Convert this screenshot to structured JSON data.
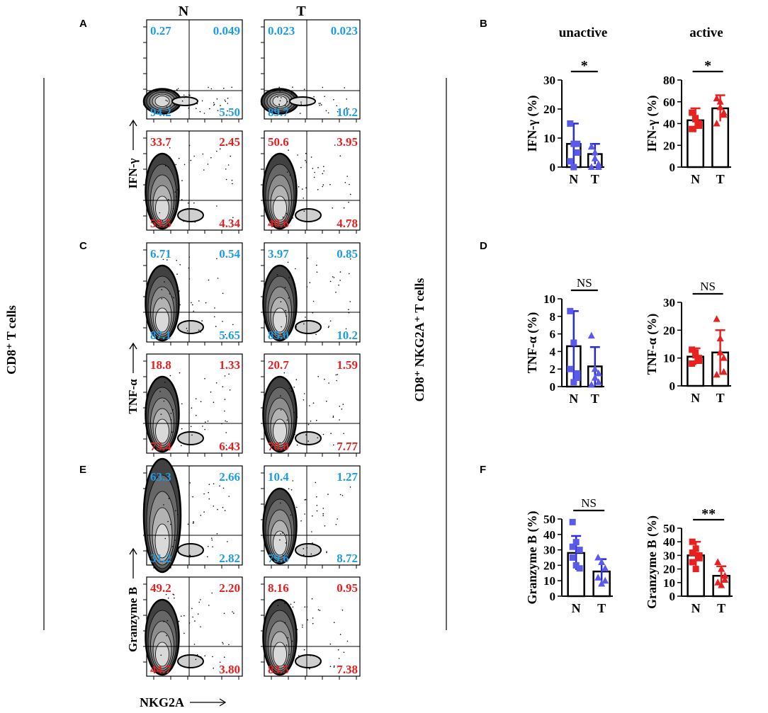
{
  "figure": {
    "panel_letters": [
      "A",
      "B",
      "C",
      "D",
      "E",
      "F"
    ],
    "column_headers": {
      "n": "N",
      "t": "T"
    },
    "row_label_left": "CD8⁺ T cells",
    "row_label_right": "CD8⁺ NKG2A⁺ T cells",
    "x_axis_flow": "NKG2A",
    "colors": {
      "blue_text": "#1e9be6",
      "red_text": "#e81e1e",
      "blue_series": "#2a2adc",
      "blue_marker": "#5a5ae8",
      "red_series": "#e82020"
    }
  },
  "flow": [
    {
      "id": "A-N-unactive",
      "panel": "A",
      "group": "N",
      "state": "unactive",
      "ylabel": "",
      "q": [
        "0.27",
        "0.049",
        "94.2",
        "5.50"
      ]
    },
    {
      "id": "A-T-unactive",
      "panel": "A",
      "group": "T",
      "state": "unactive",
      "ylabel": "",
      "q": [
        "0.023",
        "0.023",
        "89.7",
        "10.2"
      ]
    },
    {
      "id": "A-N-active",
      "panel": "A",
      "group": "N",
      "state": "active",
      "ylabel": "IFN-γ",
      "q": [
        "33.7",
        "2.45",
        "59.5",
        "4.34"
      ]
    },
    {
      "id": "A-T-active",
      "panel": "A",
      "group": "T",
      "state": "active",
      "ylabel": "",
      "q": [
        "50.6",
        "3.95",
        "40.6",
        "4.78"
      ]
    },
    {
      "id": "C-N-unactive",
      "panel": "C",
      "group": "N",
      "state": "unactive",
      "ylabel": "",
      "q": [
        "6.71",
        "0.54",
        "87.1",
        "5.65"
      ]
    },
    {
      "id": "C-T-unactive",
      "panel": "C",
      "group": "T",
      "state": "unactive",
      "ylabel": "",
      "q": [
        "3.97",
        "0.85",
        "85.0",
        "10.2"
      ]
    },
    {
      "id": "C-N-active",
      "panel": "C",
      "group": "N",
      "state": "active",
      "ylabel": "TNF-α",
      "q": [
        "18.8",
        "1.33",
        "73.4",
        "6.43"
      ]
    },
    {
      "id": "C-T-active",
      "panel": "C",
      "group": "T",
      "state": "active",
      "ylabel": "",
      "q": [
        "20.7",
        "1.59",
        "70.0",
        "7.77"
      ]
    },
    {
      "id": "E-N-unactive",
      "panel": "E",
      "group": "N",
      "state": "unactive",
      "ylabel": "",
      "q": [
        "63.3",
        "2.66",
        "31.2",
        "2.82"
      ]
    },
    {
      "id": "E-T-unactive",
      "panel": "E",
      "group": "T",
      "state": "unactive",
      "ylabel": "",
      "q": [
        "10.4",
        "1.27",
        "79.6",
        "8.72"
      ]
    },
    {
      "id": "E-N-active",
      "panel": "E",
      "group": "N",
      "state": "active",
      "ylabel": "Granzyme B",
      "q": [
        "49.2",
        "2.20",
        "44.7",
        "3.80"
      ]
    },
    {
      "id": "E-T-active",
      "panel": "E",
      "group": "T",
      "state": "active",
      "ylabel": "",
      "q": [
        "8.16",
        "0.95",
        "83.5",
        "7.38"
      ]
    }
  ],
  "chart_data": [
    {
      "type": "bar",
      "panel": "B",
      "title": "unactive",
      "ylabel": "IFN-γ (%)",
      "categories": [
        "N",
        "T"
      ],
      "ylim": [
        0,
        30
      ],
      "yticks": [
        "0",
        "10",
        "20",
        "30"
      ],
      "color": "#2a2adc",
      "series": [
        {
          "name": "N",
          "mean": 8,
          "sd": 7,
          "points": [
            15,
            8,
            5,
            2,
            0,
            8
          ]
        },
        {
          "name": "T",
          "mean": 4.5,
          "sd": 3.5,
          "points": [
            7,
            3,
            0,
            0,
            5,
            1
          ]
        }
      ],
      "significance": "*"
    },
    {
      "type": "bar",
      "panel": "B",
      "title": "active",
      "ylabel": "IFN-γ (%)",
      "categories": [
        "N",
        "T"
      ],
      "ylim": [
        0,
        80
      ],
      "yticks": [
        "0",
        "20",
        "40",
        "60",
        "80"
      ],
      "color": "#e82020",
      "series": [
        {
          "name": "N",
          "mean": 43,
          "sd": 11,
          "points": [
            50,
            44,
            38,
            35,
            45,
            40
          ]
        },
        {
          "name": "T",
          "mean": 54,
          "sd": 12,
          "points": [
            63,
            55,
            50,
            40,
            60,
            48
          ]
        }
      ],
      "significance": "*"
    },
    {
      "type": "bar",
      "panel": "D",
      "title": "",
      "ylabel": "TNF-α (%)",
      "categories": [
        "N",
        "T"
      ],
      "ylim": [
        0,
        10
      ],
      "yticks": [
        "0",
        "2",
        "4",
        "6",
        "8",
        "10"
      ],
      "color": "#2a2adc",
      "series": [
        {
          "name": "N",
          "mean": 4.6,
          "sd": 4,
          "points": [
            8.6,
            5,
            1.5,
            2,
            0.5,
            1
          ]
        },
        {
          "name": "T",
          "mean": 2.3,
          "sd": 2.2,
          "points": [
            5.8,
            2,
            0.5,
            0.2,
            1,
            1.5
          ]
        }
      ],
      "significance": "NS"
    },
    {
      "type": "bar",
      "panel": "D",
      "title": "",
      "ylabel": "TNF-α (%)",
      "categories": [
        "N",
        "T"
      ],
      "ylim": [
        0,
        30
      ],
      "yticks": [
        "0",
        "10",
        "20",
        "30"
      ],
      "color": "#e82020",
      "series": [
        {
          "name": "N",
          "mean": 10.5,
          "sd": 3,
          "points": [
            13,
            11,
            9,
            8,
            12,
            10
          ]
        },
        {
          "name": "T",
          "mean": 12,
          "sd": 8,
          "points": [
            24,
            17,
            10,
            4,
            12,
            5
          ]
        }
      ],
      "significance": "NS"
    },
    {
      "type": "bar",
      "panel": "F",
      "title": "",
      "ylabel": "Granzyme B (%)",
      "categories": [
        "N",
        "T"
      ],
      "ylim": [
        0,
        50
      ],
      "yticks": [
        "0",
        "10",
        "20",
        "30",
        "40",
        "50"
      ],
      "color": "#2a2adc",
      "series": [
        {
          "name": "N",
          "mean": 28,
          "sd": 11,
          "points": [
            48,
            35,
            30,
            25,
            20,
            18,
            32
          ]
        },
        {
          "name": "T",
          "mean": 16,
          "sd": 8,
          "points": [
            25,
            22,
            18,
            12,
            8,
            10
          ]
        }
      ],
      "significance": "NS"
    },
    {
      "type": "bar",
      "panel": "F",
      "title": "",
      "ylabel": "Granzyme B (%)",
      "categories": [
        "N",
        "T"
      ],
      "ylim": [
        0,
        50
      ],
      "yticks": [
        "0",
        "10",
        "20",
        "30",
        "40",
        "50"
      ],
      "color": "#e82020",
      "series": [
        {
          "name": "N",
          "mean": 30,
          "sd": 10,
          "points": [
            40,
            35,
            30,
            25,
            20,
            28,
            32
          ]
        },
        {
          "name": "T",
          "mean": 15,
          "sd": 7,
          "points": [
            25,
            20,
            15,
            10,
            8,
            12
          ]
        }
      ],
      "significance": "**"
    }
  ]
}
